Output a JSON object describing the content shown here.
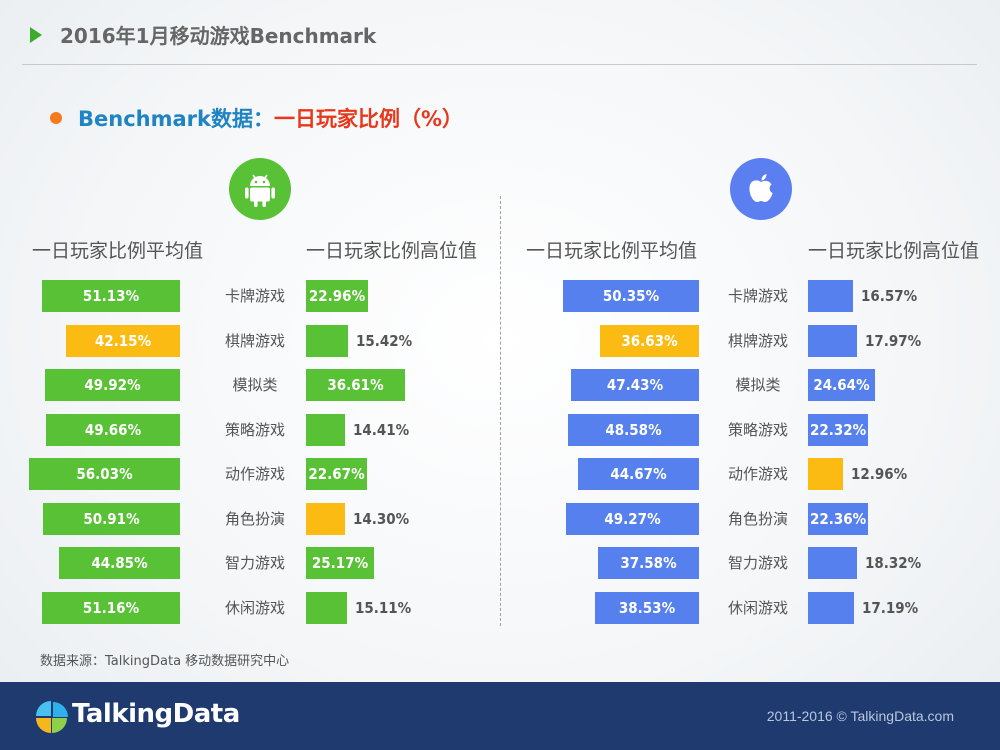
{
  "header": {
    "title": "2016年1月移动游戏Benchmark"
  },
  "section": {
    "title_blue": "Benchmark数据：",
    "title_red": "一日玩家比例（%）"
  },
  "colors": {
    "green": "#59c135",
    "orange": "#fbbb12",
    "blue": "#5680ee"
  },
  "icons": {
    "android": "android-logo-icon",
    "apple": "apple-logo-icon",
    "brand": "talkingdata-logo-icon"
  },
  "android": {
    "avg_heading": "一日玩家比例平均值",
    "high_heading": "一日玩家比例高位值"
  },
  "ios": {
    "avg_heading": "一日玩家比例平均值",
    "high_heading": "一日玩家比例高位值"
  },
  "chart_data": [
    {
      "type": "bar",
      "categories": [
        "卡牌游戏",
        "棋牌游戏",
        "模拟类",
        "策略游戏",
        "动作游戏",
        "角色扮演",
        "智力游戏",
        "休闲游戏"
      ],
      "series": [
        {
          "name": "一日玩家比例平均值",
          "values": [
            51.13,
            42.15,
            49.92,
            49.66,
            56.03,
            50.91,
            44.85,
            51.16
          ],
          "labels": [
            "51.13%",
            "42.15%",
            "49.92%",
            "49.66%",
            "56.03%",
            "50.91%",
            "44.85%",
            "51.16%"
          ],
          "highlight": [
            false,
            true,
            false,
            false,
            false,
            false,
            false,
            false
          ]
        },
        {
          "name": "一日玩家比例高位值",
          "values": [
            22.96,
            15.42,
            36.61,
            14.41,
            22.67,
            14.3,
            25.17,
            15.11
          ],
          "labels": [
            "22.96%",
            "15.42%",
            "36.61%",
            "14.41%",
            "22.67%",
            "14.30%",
            "25.17%",
            "15.11%"
          ],
          "highlight": [
            false,
            false,
            false,
            false,
            false,
            true,
            false,
            false
          ]
        }
      ]
    },
    {
      "type": "bar",
      "categories": [
        "卡牌游戏",
        "棋牌游戏",
        "模拟类",
        "策略游戏",
        "动作游戏",
        "角色扮演",
        "智力游戏",
        "休闲游戏"
      ],
      "series": [
        {
          "name": "一日玩家比例平均值",
          "values": [
            50.35,
            36.63,
            47.43,
            48.58,
            44.67,
            49.27,
            37.58,
            38.53
          ],
          "labels": [
            "50.35%",
            "36.63%",
            "47.43%",
            "48.58%",
            "44.67%",
            "49.27%",
            "37.58%",
            "38.53%"
          ],
          "highlight": [
            false,
            true,
            false,
            false,
            false,
            false,
            false,
            false
          ]
        },
        {
          "name": "一日玩家比例高位值",
          "values": [
            16.57,
            17.97,
            24.64,
            22.32,
            12.96,
            22.36,
            18.32,
            17.19
          ],
          "labels": [
            "16.57%",
            "17.97%",
            "24.64%",
            "22.32%",
            "12.96%",
            "22.36%",
            "18.32%",
            "17.19%"
          ],
          "highlight": [
            false,
            false,
            false,
            false,
            true,
            false,
            false,
            false
          ]
        }
      ]
    }
  ],
  "source": "数据来源：TalkingData 移动数据研究中心",
  "footer": {
    "brand": "TalkingData",
    "copyright": "2011-2016 © TalkingData.com"
  }
}
